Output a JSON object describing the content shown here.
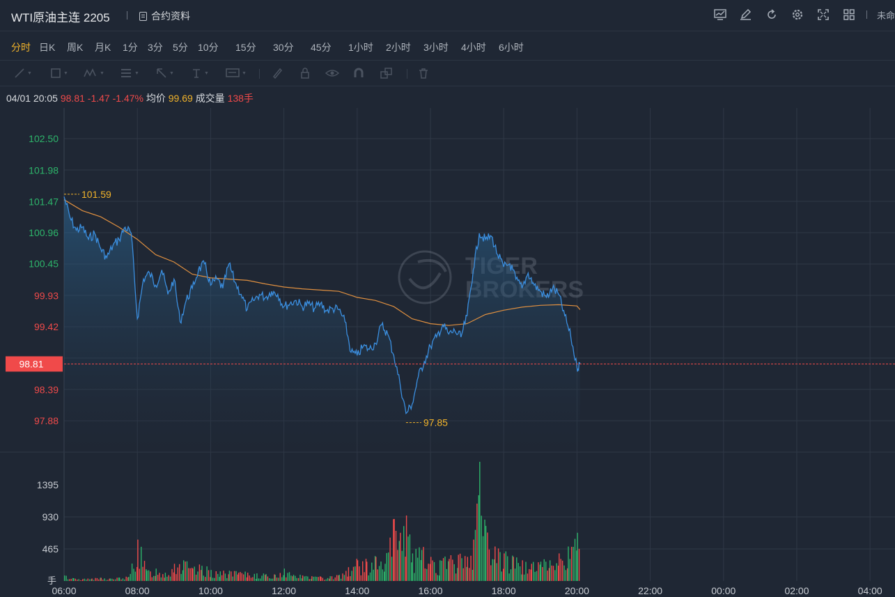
{
  "header": {
    "title": "WTI原油主连 2205",
    "contract_info_label": "合约资料",
    "unnamed_label": "未命",
    "tools": [
      "chart-indicator-icon",
      "edit-icon",
      "refresh-icon",
      "settings-icon",
      "fullscreen-icon",
      "grid-layout-icon"
    ]
  },
  "periods": [
    {
      "label": "分时",
      "active": true
    },
    {
      "label": "日K"
    },
    {
      "label": "周K"
    },
    {
      "label": "月K"
    },
    {
      "label": "1分"
    },
    {
      "label": "3分"
    },
    {
      "label": "5分"
    },
    {
      "label": "10分"
    },
    {
      "label": "15分"
    },
    {
      "label": "30分"
    },
    {
      "label": "45分"
    },
    {
      "label": "1小时"
    },
    {
      "label": "2小时"
    },
    {
      "label": "3小时"
    },
    {
      "label": "4小时"
    },
    {
      "label": "6小时"
    }
  ],
  "info": {
    "datetime": "04/01 20:05",
    "price": "98.81",
    "change": "-1.47",
    "change_pct": "-1.47%",
    "avg_label": "均价",
    "avg_value": "99.69",
    "volume_label": "成交量",
    "volume_value": "138手"
  },
  "watermark": {
    "line1": "TIGER",
    "line2": "BROKERS"
  },
  "colors": {
    "up": "#2db46a",
    "down": "#f04a4a",
    "line": "#3b8fe0",
    "avg": "#e09040",
    "highlight": "#f3b42a"
  },
  "chart_data": {
    "type": "line",
    "x_ticks": [
      "06:00",
      "08:00",
      "10:00",
      "12:00",
      "14:00",
      "16:00",
      "18:00",
      "20:00",
      "22:00",
      "00:00",
      "02:00",
      "04:00"
    ],
    "y_ticks": [
      {
        "label": "102.50",
        "value": 102.5,
        "color": "up"
      },
      {
        "label": "101.98",
        "value": 101.98,
        "color": "up"
      },
      {
        "label": "101.47",
        "value": 101.47,
        "color": "up"
      },
      {
        "label": "100.96",
        "value": 100.96,
        "color": "up"
      },
      {
        "label": "100.45",
        "value": 100.45,
        "color": "up"
      },
      {
        "label": "99.93",
        "value": 99.93,
        "color": "down"
      },
      {
        "label": "99.42",
        "value": 99.42,
        "color": "down"
      },
      {
        "label": "98.39",
        "value": 98.39,
        "color": "down"
      },
      {
        "label": "97.88",
        "value": 97.88,
        "color": "down"
      }
    ],
    "prev_close": 100.28,
    "current_price_label": "98.81",
    "current_price": 98.81,
    "high_label": "101.59",
    "low_label": "97.85",
    "price_series": [
      [
        "06:00",
        101.55
      ],
      [
        "06:10",
        101.2
      ],
      [
        "06:20",
        101.0
      ],
      [
        "06:30",
        101.05
      ],
      [
        "06:40",
        100.85
      ],
      [
        "06:50",
        100.95
      ],
      [
        "07:00",
        100.7
      ],
      [
        "07:10",
        100.55
      ],
      [
        "07:20",
        100.75
      ],
      [
        "07:30",
        100.85
      ],
      [
        "07:40",
        101.05
      ],
      [
        "07:50",
        100.95
      ],
      [
        "08:00",
        99.55
      ],
      [
        "08:10",
        100.2
      ],
      [
        "08:20",
        100.3
      ],
      [
        "08:30",
        100.1
      ],
      [
        "08:40",
        100.35
      ],
      [
        "08:50",
        99.95
      ],
      [
        "09:00",
        100.2
      ],
      [
        "09:10",
        99.5
      ],
      [
        "09:20",
        99.85
      ],
      [
        "09:30",
        100.05
      ],
      [
        "09:40",
        100.35
      ],
      [
        "09:50",
        100.45
      ],
      [
        "10:00",
        100.1
      ],
      [
        "10:10",
        100.2
      ],
      [
        "10:20",
        100.05
      ],
      [
        "10:30",
        100.45
      ],
      [
        "10:40",
        100.15
      ],
      [
        "10:50",
        99.95
      ],
      [
        "11:00",
        99.7
      ],
      [
        "11:10",
        99.85
      ],
      [
        "11:20",
        99.95
      ],
      [
        "11:30",
        99.9
      ],
      [
        "11:40",
        100.0
      ],
      [
        "11:50",
        99.95
      ],
      [
        "12:00",
        99.75
      ],
      [
        "12:10",
        99.8
      ],
      [
        "12:20",
        99.85
      ],
      [
        "12:30",
        99.75
      ],
      [
        "12:40",
        99.8
      ],
      [
        "12:50",
        99.72
      ],
      [
        "13:00",
        99.8
      ],
      [
        "13:10",
        99.68
      ],
      [
        "13:20",
        99.72
      ],
      [
        "13:30",
        99.7
      ],
      [
        "13:40",
        99.5
      ],
      [
        "13:50",
        99.0
      ],
      [
        "14:00",
        98.95
      ],
      [
        "14:10",
        99.1
      ],
      [
        "14:20",
        99.05
      ],
      [
        "14:30",
        99.15
      ],
      [
        "14:40",
        99.45
      ],
      [
        "14:50",
        99.3
      ],
      [
        "15:00",
        98.95
      ],
      [
        "15:10",
        98.5
      ],
      [
        "15:20",
        98.0
      ],
      [
        "15:30",
        98.15
      ],
      [
        "15:40",
        98.6
      ],
      [
        "15:50",
        98.85
      ],
      [
        "16:00",
        99.1
      ],
      [
        "16:10",
        99.25
      ],
      [
        "16:20",
        99.45
      ],
      [
        "16:30",
        99.3
      ],
      [
        "16:40",
        99.35
      ],
      [
        "16:50",
        99.25
      ],
      [
        "17:00",
        99.6
      ],
      [
        "17:10",
        100.35
      ],
      [
        "17:20",
        100.95
      ],
      [
        "17:30",
        100.85
      ],
      [
        "17:40",
        100.9
      ],
      [
        "17:50",
        100.6
      ],
      [
        "18:00",
        100.4
      ],
      [
        "18:10",
        100.45
      ],
      [
        "18:20",
        100.2
      ],
      [
        "18:30",
        100.05
      ],
      [
        "18:40",
        100.3
      ],
      [
        "18:50",
        100.1
      ],
      [
        "19:00",
        100.0
      ],
      [
        "19:10",
        99.9
      ],
      [
        "19:20",
        100.05
      ],
      [
        "19:30",
        99.95
      ],
      [
        "19:40",
        99.6
      ],
      [
        "19:50",
        99.25
      ],
      [
        "20:00",
        98.75
      ],
      [
        "20:05",
        98.81
      ]
    ],
    "avg_series": [
      [
        "06:00",
        101.5
      ],
      [
        "06:30",
        101.32
      ],
      [
        "07:00",
        101.22
      ],
      [
        "07:30",
        101.05
      ],
      [
        "08:00",
        100.85
      ],
      [
        "08:30",
        100.6
      ],
      [
        "09:00",
        100.48
      ],
      [
        "09:30",
        100.28
      ],
      [
        "10:00",
        100.22
      ],
      [
        "10:30",
        100.2
      ],
      [
        "11:00",
        100.18
      ],
      [
        "11:30",
        100.12
      ],
      [
        "12:00",
        100.07
      ],
      [
        "12:30",
        100.04
      ],
      [
        "13:00",
        100.02
      ],
      [
        "13:30",
        100.0
      ],
      [
        "14:00",
        99.9
      ],
      [
        "14:30",
        99.85
      ],
      [
        "15:00",
        99.75
      ],
      [
        "15:30",
        99.55
      ],
      [
        "16:00",
        99.47
      ],
      [
        "16:30",
        99.44
      ],
      [
        "17:00",
        99.47
      ],
      [
        "17:30",
        99.62
      ],
      [
        "18:00",
        99.69
      ],
      [
        "18:30",
        99.74
      ],
      [
        "19:00",
        99.77
      ],
      [
        "19:30",
        99.78
      ],
      [
        "20:00",
        99.76
      ],
      [
        "20:05",
        99.7
      ]
    ],
    "volume_ticks": [
      {
        "label": "1395",
        "value": 1395
      },
      {
        "label": "930",
        "value": 930
      },
      {
        "label": "465",
        "value": 465
      }
    ],
    "volume_unit_label": "手",
    "volume_series": [
      [
        "06:00",
        80
      ],
      [
        "06:15",
        40
      ],
      [
        "06:30",
        30
      ],
      [
        "06:45",
        35
      ],
      [
        "07:00",
        45
      ],
      [
        "07:15",
        35
      ],
      [
        "07:30",
        50
      ],
      [
        "07:45",
        60
      ],
      [
        "08:00",
        600
      ],
      [
        "08:15",
        150
      ],
      [
        "08:30",
        180
      ],
      [
        "08:45",
        120
      ],
      [
        "09:00",
        250
      ],
      [
        "09:15",
        300
      ],
      [
        "09:30",
        180
      ],
      [
        "09:45",
        220
      ],
      [
        "10:00",
        160
      ],
      [
        "10:15",
        140
      ],
      [
        "10:30",
        150
      ],
      [
        "10:45",
        120
      ],
      [
        "11:00",
        120
      ],
      [
        "11:15",
        110
      ],
      [
        "11:30",
        100
      ],
      [
        "11:45",
        90
      ],
      [
        "12:00",
        180
      ],
      [
        "12:15",
        90
      ],
      [
        "12:30",
        80
      ],
      [
        "12:45",
        70
      ],
      [
        "13:00",
        60
      ],
      [
        "13:15",
        70
      ],
      [
        "13:30",
        90
      ],
      [
        "13:45",
        200
      ],
      [
        "14:00",
        300
      ],
      [
        "14:15",
        280
      ],
      [
        "14:30",
        350
      ],
      [
        "14:45",
        250
      ],
      [
        "15:00",
        900
      ],
      [
        "15:10",
        700
      ],
      [
        "15:20",
        950
      ],
      [
        "15:30",
        400
      ],
      [
        "15:45",
        450
      ],
      [
        "16:00",
        350
      ],
      [
        "16:15",
        300
      ],
      [
        "16:30",
        320
      ],
      [
        "16:45",
        380
      ],
      [
        "17:00",
        350
      ],
      [
        "17:10",
        600
      ],
      [
        "17:20",
        1730
      ],
      [
        "17:30",
        800
      ],
      [
        "17:45",
        500
      ],
      [
        "18:00",
        400
      ],
      [
        "18:15",
        350
      ],
      [
        "18:30",
        300
      ],
      [
        "18:45",
        250
      ],
      [
        "19:00",
        280
      ],
      [
        "19:15",
        300
      ],
      [
        "19:30",
        400
      ],
      [
        "19:45",
        500
      ],
      [
        "20:00",
        700
      ],
      [
        "20:05",
        500
      ]
    ],
    "xlabel": "",
    "ylabel": ""
  }
}
